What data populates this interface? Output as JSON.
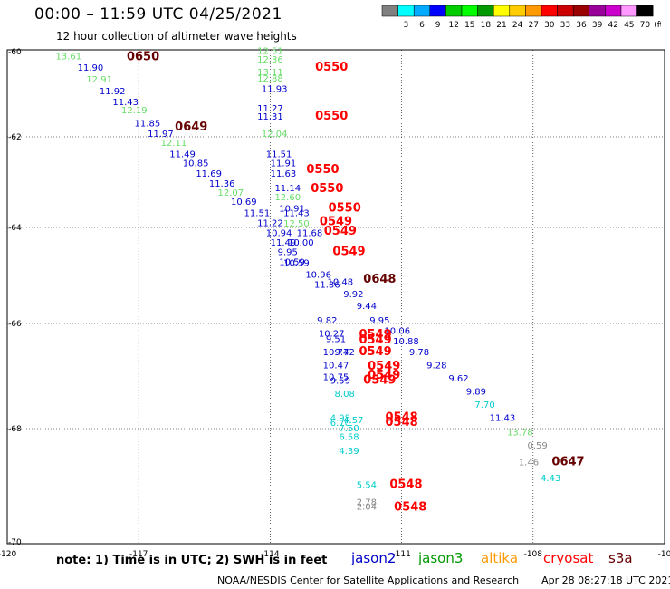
{
  "title": "00:00 – 11:59 UTC 04/25/2021",
  "subtitle": "12 hour collection of altimeter wave heights",
  "legend": {
    "unit": "(ft)",
    "bins": [
      {
        "label": "",
        "color": "#808080"
      },
      {
        "label": "3",
        "color": "#00ffff"
      },
      {
        "label": "6",
        "color": "#00aaff"
      },
      {
        "label": "9",
        "color": "#0000ff"
      },
      {
        "label": "12",
        "color": "#00cc00"
      },
      {
        "label": "15",
        "color": "#00ff00"
      },
      {
        "label": "18",
        "color": "#009900"
      },
      {
        "label": "21",
        "color": "#ffff00"
      },
      {
        "label": "24",
        "color": "#ffcc00"
      },
      {
        "label": "27",
        "color": "#ff9900"
      },
      {
        "label": "30",
        "color": "#ff0000"
      },
      {
        "label": "33",
        "color": "#cc0000"
      },
      {
        "label": "36",
        "color": "#990000"
      },
      {
        "label": "39",
        "color": "#990099"
      },
      {
        "label": "42",
        "color": "#cc00cc"
      },
      {
        "label": "45",
        "color": "#ff99ff"
      },
      {
        "label": "70",
        "color": "#000000"
      }
    ]
  },
  "axes": {
    "lon_ticks": [
      "-120",
      "-117",
      "-114",
      "-111",
      "-108",
      "-10"
    ],
    "lat_ticks": [
      "-60",
      "-62",
      "-64",
      "-66",
      "-68",
      "-70"
    ]
  },
  "colors": {
    "jason2": "#0000cc",
    "jason3": "#009900",
    "altika": "#ff9900",
    "cryosat": "#ff0000",
    "s3a": "#660000",
    "sat_light_green": "#66dd66",
    "sat_cyan": "#00cccc",
    "sat_grey": "#888888",
    "sat_yellow": "#eeee00"
  },
  "map_data": {
    "type": "altimeter_track_map",
    "heights": [
      {
        "lon": -118.6,
        "lat": -60.18,
        "v": "13.61",
        "c": "sat_light_green"
      },
      {
        "lon": -118.1,
        "lat": -60.45,
        "v": "11.90",
        "c": "jason2"
      },
      {
        "lon": -117.9,
        "lat": -60.72,
        "v": "12.91",
        "c": "sat_light_green"
      },
      {
        "lon": -117.6,
        "lat": -61.0,
        "v": "11.92",
        "c": "jason2"
      },
      {
        "lon": -117.3,
        "lat": -61.25,
        "v": "11.43",
        "c": "jason2"
      },
      {
        "lon": -117.1,
        "lat": -61.45,
        "v": "12.19",
        "c": "sat_light_green"
      },
      {
        "lon": -116.8,
        "lat": -61.75,
        "v": "11.85",
        "c": "jason2"
      },
      {
        "lon": -116.5,
        "lat": -62.0,
        "v": "11.97",
        "c": "jason2"
      },
      {
        "lon": -116.2,
        "lat": -62.2,
        "v": "12.11",
        "c": "sat_light_green"
      },
      {
        "lon": -116.0,
        "lat": -62.45,
        "v": "11.49",
        "c": "jason2"
      },
      {
        "lon": -115.7,
        "lat": -62.65,
        "v": "10.85",
        "c": "jason2"
      },
      {
        "lon": -115.4,
        "lat": -62.88,
        "v": "11.69",
        "c": "jason2"
      },
      {
        "lon": -115.1,
        "lat": -63.1,
        "v": "11.36",
        "c": "jason2"
      },
      {
        "lon": -114.9,
        "lat": -63.3,
        "v": "12.07",
        "c": "sat_light_green"
      },
      {
        "lon": -114.6,
        "lat": -63.5,
        "v": "10.69",
        "c": "jason2"
      },
      {
        "lon": -114.3,
        "lat": -63.75,
        "v": "11.51",
        "c": "jason2"
      },
      {
        "lon": -114.0,
        "lat": -63.97,
        "v": "11.22",
        "c": "jason2"
      },
      {
        "lon": -113.8,
        "lat": -64.18,
        "v": "10.94",
        "c": "jason2"
      },
      {
        "lon": -113.7,
        "lat": -64.38,
        "v": "11.49",
        "c": "jason2"
      },
      {
        "lon": -113.6,
        "lat": -64.58,
        "v": "9.95",
        "c": "jason2"
      },
      {
        "lon": -113.5,
        "lat": -64.78,
        "v": "10.59",
        "c": "jason2"
      },
      {
        "lon": -112.9,
        "lat": -65.05,
        "v": "10.96",
        "c": "jason2"
      },
      {
        "lon": -112.7,
        "lat": -65.25,
        "v": "11.36",
        "c": "jason2"
      },
      {
        "lon": -112.1,
        "lat": -65.45,
        "v": "9.92",
        "c": "jason2"
      },
      {
        "lon": -111.8,
        "lat": -65.7,
        "v": "9.44",
        "c": "jason2"
      },
      {
        "lon": -111.5,
        "lat": -66.0,
        "v": "9.95",
        "c": "jason2"
      },
      {
        "lon": -111.1,
        "lat": -66.2,
        "v": "10.06",
        "c": "jason2"
      },
      {
        "lon": -110.9,
        "lat": -66.4,
        "v": "10.88",
        "c": "jason2"
      },
      {
        "lon": -110.6,
        "lat": -66.6,
        "v": "9.78",
        "c": "jason2"
      },
      {
        "lon": -110.2,
        "lat": -66.85,
        "v": "9.28",
        "c": "jason2"
      },
      {
        "lon": -109.7,
        "lat": -67.1,
        "v": "9.62",
        "c": "jason2"
      },
      {
        "lon": -109.3,
        "lat": -67.35,
        "v": "9.89",
        "c": "jason2"
      },
      {
        "lon": -109.1,
        "lat": -67.6,
        "v": "7.70",
        "c": "sat_cyan"
      },
      {
        "lon": -108.7,
        "lat": -67.85,
        "v": "11.43",
        "c": "jason2"
      },
      {
        "lon": -108.3,
        "lat": -68.12,
        "v": "13.78",
        "c": "sat_light_green"
      },
      {
        "lon": -107.9,
        "lat": -68.35,
        "v": "0.59",
        "c": "sat_grey"
      },
      {
        "lon": -108.1,
        "lat": -68.65,
        "v": "1.46",
        "c": "sat_grey"
      },
      {
        "lon": -107.6,
        "lat": -68.93,
        "v": "4.43",
        "c": "sat_cyan"
      },
      {
        "lon": -114.0,
        "lat": -60.05,
        "v": "12.51",
        "c": "sat_light_green"
      },
      {
        "lon": -114.0,
        "lat": -60.25,
        "v": "12.36",
        "c": "sat_light_green"
      },
      {
        "lon": -114.0,
        "lat": -60.55,
        "v": "13.11",
        "c": "sat_light_green"
      },
      {
        "lon": -114.0,
        "lat": -60.7,
        "v": "12.88",
        "c": "sat_light_green"
      },
      {
        "lon": -113.9,
        "lat": -60.95,
        "v": "11.93",
        "c": "jason2"
      },
      {
        "lon": -114.0,
        "lat": -61.4,
        "v": "11.27",
        "c": "jason2"
      },
      {
        "lon": -114.0,
        "lat": -61.6,
        "v": "11.31",
        "c": "jason2"
      },
      {
        "lon": -113.9,
        "lat": -62.0,
        "v": "12.04",
        "c": "sat_light_green"
      },
      {
        "lon": -113.8,
        "lat": -62.45,
        "v": "11.51",
        "c": "jason2"
      },
      {
        "lon": -113.7,
        "lat": -62.65,
        "v": "11.91",
        "c": "jason2"
      },
      {
        "lon": -113.7,
        "lat": -62.88,
        "v": "11.63",
        "c": "jason2"
      },
      {
        "lon": -113.6,
        "lat": -63.2,
        "v": "11.14",
        "c": "jason2"
      },
      {
        "lon": -113.6,
        "lat": -63.4,
        "v": "12.60",
        "c": "sat_light_green"
      },
      {
        "lon": -113.5,
        "lat": -63.65,
        "v": "10.91",
        "c": "jason2"
      },
      {
        "lon": -113.4,
        "lat": -63.75,
        "v": "11.43",
        "c": "jason2"
      },
      {
        "lon": -113.4,
        "lat": -63.98,
        "v": "12.50",
        "c": "sat_light_green"
      },
      {
        "lon": -113.1,
        "lat": -64.18,
        "v": "11.68",
        "c": "jason2"
      },
      {
        "lon": -113.3,
        "lat": -64.38,
        "v": "10.00",
        "c": "jason2"
      },
      {
        "lon": -113.4,
        "lat": -64.8,
        "v": "10.59",
        "c": "jason2"
      },
      {
        "lon": -112.4,
        "lat": -65.2,
        "v": "10.48",
        "c": "jason2"
      },
      {
        "lon": -112.7,
        "lat": -66.0,
        "v": "9.82",
        "c": "jason2"
      },
      {
        "lon": -112.6,
        "lat": -66.25,
        "v": "10.27",
        "c": "jason2"
      },
      {
        "lon": -112.5,
        "lat": -66.35,
        "v": "9.51",
        "c": "jason2"
      },
      {
        "lon": -112.5,
        "lat": -66.6,
        "v": "10.74",
        "c": "jason2"
      },
      {
        "lon": -112.3,
        "lat": -66.6,
        "v": "9.72",
        "c": "jason2"
      },
      {
        "lon": -112.5,
        "lat": -66.85,
        "v": "10.47",
        "c": "jason2"
      },
      {
        "lon": -112.5,
        "lat": -67.08,
        "v": "10.75",
        "c": "jason2"
      },
      {
        "lon": -112.4,
        "lat": -67.15,
        "v": "9.59",
        "c": "jason2"
      },
      {
        "lon": -112.3,
        "lat": -67.4,
        "v": "8.08",
        "c": "sat_cyan"
      },
      {
        "lon": -112.4,
        "lat": -67.85,
        "v": "4.98",
        "c": "sat_cyan"
      },
      {
        "lon": -112.4,
        "lat": -67.95,
        "v": "6.70",
        "c": "sat_cyan"
      },
      {
        "lon": -112.1,
        "lat": -67.9,
        "v": "4.57",
        "c": "sat_cyan"
      },
      {
        "lon": -112.2,
        "lat": -68.05,
        "v": "7.50",
        "c": "sat_cyan"
      },
      {
        "lon": -112.2,
        "lat": -68.2,
        "v": "6.58",
        "c": "sat_cyan"
      },
      {
        "lon": -112.2,
        "lat": -68.45,
        "v": "4.39",
        "c": "sat_cyan"
      },
      {
        "lon": -111.8,
        "lat": -69.05,
        "v": "5.54",
        "c": "sat_cyan"
      },
      {
        "lon": -111.8,
        "lat": -69.35,
        "v": "2.78",
        "c": "sat_grey"
      },
      {
        "lon": -111.8,
        "lat": -69.43,
        "v": "2.04",
        "c": "sat_grey"
      }
    ],
    "times": [
      {
        "lon": -116.9,
        "lat": -60.2,
        "v": "0650",
        "c": "s3a"
      },
      {
        "lon": -112.6,
        "lat": -60.45,
        "v": "0550",
        "c": "cryosat"
      },
      {
        "lon": -115.8,
        "lat": -61.85,
        "v": "0649",
        "c": "s3a"
      },
      {
        "lon": -112.6,
        "lat": -61.6,
        "v": "0550",
        "c": "cryosat"
      },
      {
        "lon": -112.8,
        "lat": -62.8,
        "v": "0550",
        "c": "cryosat"
      },
      {
        "lon": -112.7,
        "lat": -63.22,
        "v": "0550",
        "c": "cryosat"
      },
      {
        "lon": -112.3,
        "lat": -63.65,
        "v": "0550",
        "c": "cryosat"
      },
      {
        "lon": -112.5,
        "lat": -63.95,
        "v": "0549",
        "c": "cryosat"
      },
      {
        "lon": -112.4,
        "lat": -64.15,
        "v": "0549",
        "c": "cryosat"
      },
      {
        "lon": -112.2,
        "lat": -64.58,
        "v": "0549",
        "c": "cryosat"
      },
      {
        "lon": -111.5,
        "lat": -65.15,
        "v": "0648",
        "c": "s3a"
      },
      {
        "lon": -111.6,
        "lat": -66.28,
        "v": "0549",
        "c": "cryosat"
      },
      {
        "lon": -111.6,
        "lat": -66.38,
        "v": "0549",
        "c": "cryosat"
      },
      {
        "lon": -111.6,
        "lat": -66.6,
        "v": "0549",
        "c": "cryosat"
      },
      {
        "lon": -111.4,
        "lat": -66.88,
        "v": "0549",
        "c": "cryosat"
      },
      {
        "lon": -111.4,
        "lat": -67.05,
        "v": "0549",
        "c": "cryosat"
      },
      {
        "lon": -111.5,
        "lat": -67.15,
        "v": "0549",
        "c": "cryosat"
      },
      {
        "lon": -111.0,
        "lat": -67.85,
        "v": "0548",
        "c": "cryosat"
      },
      {
        "lon": -111.0,
        "lat": -67.95,
        "v": "0548",
        "c": "cryosat"
      },
      {
        "lon": -107.2,
        "lat": -68.65,
        "v": "0647",
        "c": "s3a"
      },
      {
        "lon": -110.9,
        "lat": -69.05,
        "v": "0548",
        "c": "cryosat"
      },
      {
        "lon": -110.8,
        "lat": -69.45,
        "v": "0548",
        "c": "cryosat"
      }
    ]
  },
  "footer": {
    "note": "note:  1) Time is in UTC;  2) SWH is in feet",
    "satellites": [
      {
        "name": "jason2",
        "color": "#0000cc"
      },
      {
        "name": "jason3",
        "color": "#009900"
      },
      {
        "name": "altika",
        "color": "#ff9900"
      },
      {
        "name": "cryosat",
        "color": "#ff0000"
      },
      {
        "name": "s3a",
        "color": "#660000"
      }
    ],
    "credit": "NOAA/NESDIS Center for Satellite Applications and Research",
    "timestamp": "Apr 28 08:27:18 UTC 2021"
  }
}
